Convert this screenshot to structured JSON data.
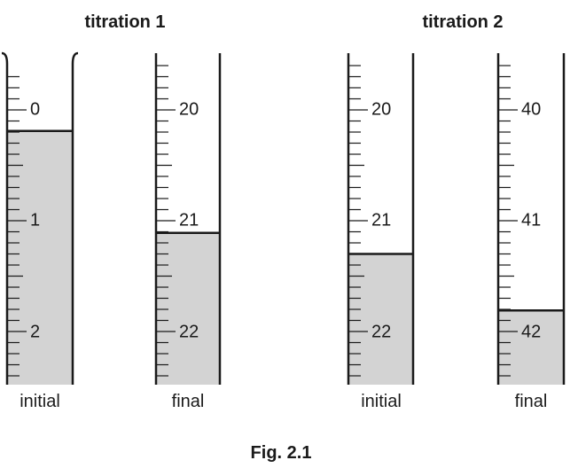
{
  "titles": [
    "titration 1",
    "titration 2"
  ],
  "figure_caption": "Fig. 2.1",
  "burettes": [
    {
      "caption": "initial",
      "scale_labels": [
        "0",
        "1",
        "2"
      ],
      "reading": 0.19
    },
    {
      "caption": "final",
      "scale_labels": [
        "20",
        "21",
        "22"
      ],
      "reading": 21.11
    },
    {
      "caption": "initial",
      "scale_labels": [
        "20",
        "21",
        "22"
      ],
      "reading": 21.3
    },
    {
      "caption": "final",
      "scale_labels": [
        "40",
        "41",
        "42"
      ],
      "reading": 41.81
    }
  ],
  "colors": {
    "liquid": "#d3d3d3",
    "line": "#1a1a1a"
  }
}
